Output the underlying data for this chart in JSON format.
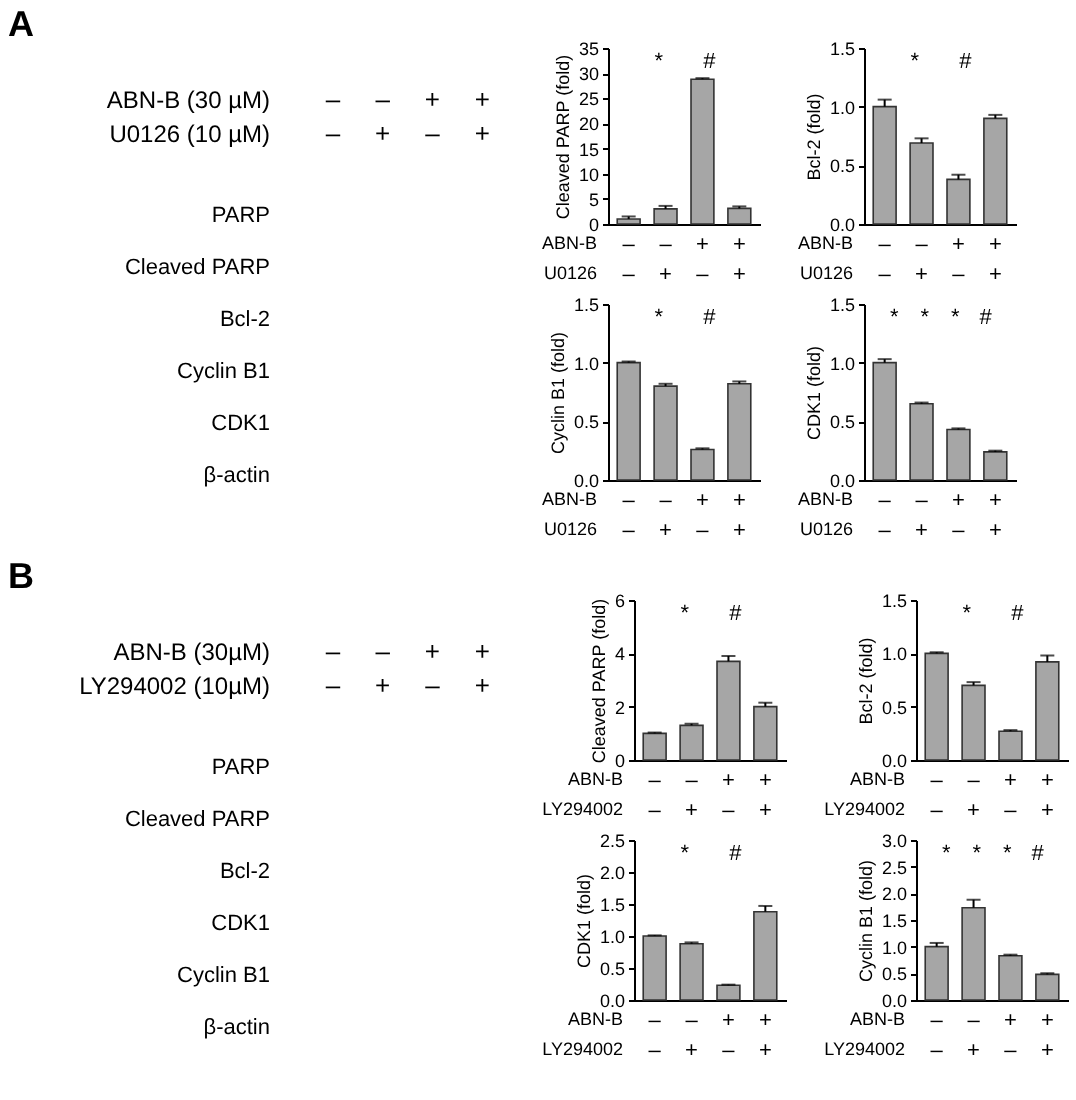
{
  "chart_data": [
    {
      "type": "other",
      "title": "A",
      "categories": [
        "–\n–",
        "–\n+",
        "+\n–",
        "+\n+"
      ],
      "annotations": [
        "ABN-B (30 µM)",
        "U0126 (10 µM)",
        "PARP",
        "Cleaved PARP",
        "Bcl-2",
        "Cyclin B1",
        "CDK1",
        "β-actin"
      ]
    },
    {
      "type": "bar",
      "ylabel": "Cleaved PARP (fold)",
      "xlabel": "ABN-B\nU0126",
      "categories": [
        "–\n–",
        "–\n+",
        "+\n–",
        "+\n+"
      ],
      "values": [
        1.0,
        3.0,
        28.8,
        3.1
      ],
      "errors": [
        [
          1.0,
          1.5
        ],
        [
          3.0,
          3.6
        ],
        [
          28.8,
          29.0
        ],
        [
          3.1,
          3.5
        ]
      ],
      "color": "#a6a6a6",
      "ylim": [
        0,
        35
      ],
      "yticks": [
        0,
        5,
        10,
        15,
        20,
        25,
        30,
        35
      ],
      "annotations": [
        "*",
        "#"
      ]
    },
    {
      "type": "bar",
      "ylabel": "Bcl-2 (fold)",
      "xlabel": "ABN-B\nU0126",
      "categories": [
        "–\n–",
        "–\n+",
        "+\n–",
        "+\n+"
      ],
      "values": [
        1.0,
        0.69,
        0.38,
        0.9
      ],
      "errors": [
        [
          1.0,
          1.06
        ],
        [
          0.69,
          0.73
        ],
        [
          0.38,
          0.42
        ],
        [
          0.9,
          0.93
        ]
      ],
      "color": "#a6a6a6",
      "ylim": [
        0,
        1.5
      ],
      "yticks": [
        {
          "value": 0,
          "label": "0.0"
        },
        0.5,
        {
          "value": 1,
          "label": "1.0"
        },
        1.5
      ],
      "annotations": [
        "*",
        "#"
      ]
    },
    {
      "type": "bar",
      "ylabel": "Cyclin B1 (fold)",
      "xlabel": "ABN-B\nU0126",
      "categories": [
        "–\n–",
        "–\n+",
        "+\n–",
        "+\n+"
      ],
      "values": [
        1.0,
        0.8,
        0.26,
        0.82
      ],
      "errors": [
        [
          1.0,
          1.01
        ],
        [
          0.8,
          0.82
        ],
        [
          0.26,
          0.27
        ],
        [
          0.82,
          0.84
        ]
      ],
      "color": "#a6a6a6",
      "ylim": [
        0,
        1.5
      ],
      "yticks": [
        {
          "value": 0,
          "label": "0.0"
        },
        0.5,
        {
          "value": 1,
          "label": "1.0"
        },
        1.5
      ],
      "annotations": [
        "*",
        "#"
      ]
    },
    {
      "type": "bar",
      "ylabel": "CDK1 (fold)",
      "xlabel": "ABN-B\nU0126",
      "categories": [
        "–\n–",
        "–\n+",
        "+\n–",
        "+\n+"
      ],
      "values": [
        1.0,
        0.65,
        0.43,
        0.24
      ],
      "errors": [
        [
          1.0,
          1.03
        ],
        [
          0.65,
          0.66
        ],
        [
          0.43,
          0.44
        ],
        [
          0.24,
          0.25
        ]
      ],
      "color": "#a6a6a6",
      "ylim": [
        0,
        1.5
      ],
      "yticks": [
        {
          "value": 0,
          "label": "0.0"
        },
        0.5,
        {
          "value": 1,
          "label": "1.0"
        },
        1.5
      ],
      "annotations": [
        "*",
        "*",
        "*",
        "#"
      ]
    },
    {
      "type": "other",
      "title": "B",
      "categories": [
        "–\n–",
        "–\n+",
        "+\n–",
        "+\n+"
      ],
      "annotations": [
        "ABN-B (30µM)",
        "LY294002 (10µM)",
        "PARP",
        "Cleaved PARP",
        "Bcl-2",
        "CDK1",
        "Cyclin B1",
        "β-actin"
      ]
    },
    {
      "type": "bar",
      "ylabel": "Cleaved PARP (fold)",
      "xlabel": "ABN-B\nLY294002",
      "categories": [
        "–\n–",
        "–\n+",
        "+\n–",
        "+\n+"
      ],
      "values": [
        1.0,
        1.3,
        3.7,
        2.0
      ],
      "errors": [
        [
          1.0,
          1.03
        ],
        [
          1.3,
          1.36
        ],
        [
          3.7,
          3.9
        ],
        [
          2.0,
          2.15
        ]
      ],
      "color": "#a6a6a6",
      "ylim": [
        0,
        6
      ],
      "yticks": [
        0,
        2,
        4,
        6
      ],
      "annotations": [
        "*",
        "#"
      ]
    },
    {
      "type": "bar",
      "ylabel": "Bcl-2 (fold)",
      "xlabel": "ABN-B\nLY294002",
      "categories": [
        "–\n–",
        "–\n+",
        "+\n–",
        "+\n+"
      ],
      "values": [
        1.0,
        0.7,
        0.27,
        0.92
      ],
      "errors": [
        [
          1.0,
          1.01
        ],
        [
          0.7,
          0.73
        ],
        [
          0.27,
          0.28
        ],
        [
          0.92,
          0.98
        ]
      ],
      "color": "#a6a6a6",
      "ylim": [
        0,
        1.5
      ],
      "yticks": [
        {
          "value": 0,
          "label": "0.0"
        },
        0.5,
        {
          "value": 1,
          "label": "1.0"
        },
        1.5
      ],
      "annotations": [
        "*",
        "#"
      ]
    },
    {
      "type": "bar",
      "ylabel": "CDK1 (fold)",
      "xlabel": "ABN-B\nLY294002",
      "categories": [
        "–\n–",
        "–\n+",
        "+\n–",
        "+\n+"
      ],
      "values": [
        1.0,
        0.88,
        0.23,
        1.38
      ],
      "errors": [
        [
          1.0,
          1.01
        ],
        [
          0.88,
          0.9
        ],
        [
          0.23,
          0.24
        ],
        [
          1.38,
          1.47
        ]
      ],
      "color": "#a6a6a6",
      "ylim": [
        0,
        2.5
      ],
      "yticks": [
        {
          "value": 0,
          "label": "0.0"
        },
        0.5,
        {
          "value": 1,
          "label": "1.0"
        },
        1.5,
        {
          "value": 2,
          "label": "2.0"
        },
        2.5
      ],
      "annotations": [
        "*",
        "#"
      ]
    },
    {
      "type": "bar",
      "ylabel": "Cyclin B1 (fold)",
      "xlabel": "ABN-B\nLY294002",
      "categories": [
        "–\n–",
        "–\n+",
        "+\n–",
        "+\n+"
      ],
      "values": [
        1.0,
        1.73,
        0.83,
        0.48
      ],
      "errors": [
        [
          1.0,
          1.07
        ],
        [
          1.73,
          1.88
        ],
        [
          0.83,
          0.85
        ],
        [
          0.48,
          0.5
        ]
      ],
      "color": "#a6a6a6",
      "ylim": [
        0,
        3
      ],
      "yticks": [
        {
          "value": 0,
          "label": "0.0"
        },
        0.5,
        {
          "value": 1,
          "label": "1.0"
        },
        1.5,
        {
          "value": 2,
          "label": "2.0"
        },
        2.5,
        {
          "value": 3,
          "label": "3.0"
        }
      ],
      "annotations": [
        "*",
        "*",
        "*",
        "#"
      ]
    }
  ]
}
